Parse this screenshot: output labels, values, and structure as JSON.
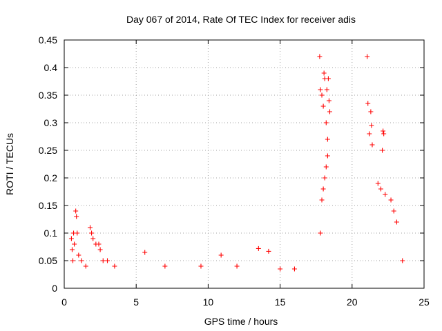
{
  "chart_data": {
    "type": "scatter",
    "title": "Day 067 of 2014, Rate Of TEC Index for receiver adis",
    "xlabel": "GPS time / hours",
    "ylabel": "ROTI / TECUs",
    "xlim": [
      0,
      25
    ],
    "ylim": [
      0,
      0.45
    ],
    "xticks": [
      "0",
      "5",
      "10",
      "15",
      "20",
      "25"
    ],
    "yticks": [
      "0",
      "0.05",
      "0.1",
      "0.15",
      "0.2",
      "0.25",
      "0.3",
      "0.35",
      "0.4",
      "0.45"
    ],
    "grid": true,
    "marker": "+",
    "marker_color": "#ff0000",
    "series": [
      {
        "name": "ROTI",
        "points": [
          [
            0.5,
            0.09
          ],
          [
            0.55,
            0.07
          ],
          [
            0.6,
            0.05
          ],
          [
            0.65,
            0.1
          ],
          [
            0.7,
            0.08
          ],
          [
            0.8,
            0.14
          ],
          [
            0.85,
            0.13
          ],
          [
            0.9,
            0.1
          ],
          [
            1.0,
            0.06
          ],
          [
            1.2,
            0.05
          ],
          [
            1.5,
            0.04
          ],
          [
            1.8,
            0.11
          ],
          [
            1.9,
            0.1
          ],
          [
            2.0,
            0.09
          ],
          [
            2.2,
            0.08
          ],
          [
            2.4,
            0.08
          ],
          [
            2.5,
            0.07
          ],
          [
            2.7,
            0.05
          ],
          [
            3.0,
            0.05
          ],
          [
            3.5,
            0.04
          ],
          [
            5.6,
            0.065
          ],
          [
            7.0,
            0.04
          ],
          [
            9.5,
            0.04
          ],
          [
            10.9,
            0.06
          ],
          [
            12.0,
            0.04
          ],
          [
            13.5,
            0.072
          ],
          [
            14.2,
            0.067
          ],
          [
            15.0,
            0.035
          ],
          [
            16.0,
            0.035
          ],
          [
            17.75,
            0.42
          ],
          [
            17.8,
            0.36
          ],
          [
            17.9,
            0.35
          ],
          [
            18.0,
            0.33
          ],
          [
            18.05,
            0.39
          ],
          [
            18.1,
            0.38
          ],
          [
            18.2,
            0.3
          ],
          [
            18.25,
            0.36
          ],
          [
            18.3,
            0.27
          ],
          [
            18.35,
            0.38
          ],
          [
            18.4,
            0.34
          ],
          [
            18.45,
            0.32
          ],
          [
            18.3,
            0.24
          ],
          [
            18.2,
            0.22
          ],
          [
            18.1,
            0.2
          ],
          [
            18.0,
            0.18
          ],
          [
            17.9,
            0.16
          ],
          [
            17.8,
            0.1
          ],
          [
            21.05,
            0.42
          ],
          [
            21.1,
            0.335
          ],
          [
            21.2,
            0.28
          ],
          [
            21.3,
            0.32
          ],
          [
            21.35,
            0.295
          ],
          [
            21.4,
            0.26
          ],
          [
            22.1,
            0.25
          ],
          [
            22.15,
            0.285
          ],
          [
            22.2,
            0.28
          ],
          [
            21.8,
            0.19
          ],
          [
            22.0,
            0.18
          ],
          [
            22.3,
            0.17
          ],
          [
            22.7,
            0.16
          ],
          [
            22.9,
            0.14
          ],
          [
            23.1,
            0.12
          ],
          [
            23.5,
            0.05
          ]
        ]
      }
    ]
  }
}
